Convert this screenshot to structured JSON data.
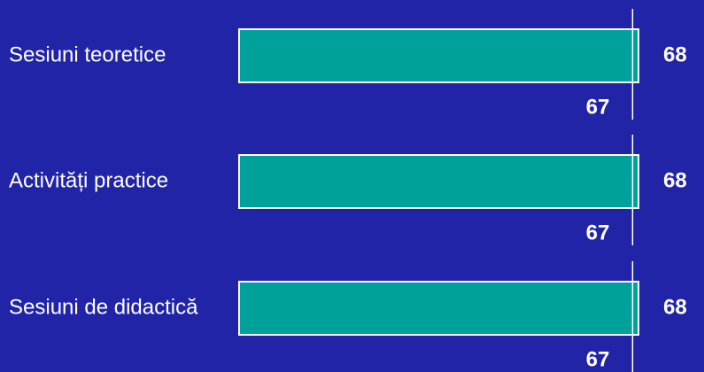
{
  "chart_data": {
    "type": "bar",
    "orientation": "horizontal",
    "categories": [
      "Sesiuni teoretice",
      "Activități practice",
      "Sesiuni de didactică"
    ],
    "values": [
      68,
      68,
      68
    ],
    "marker_values": [
      67,
      67,
      67
    ],
    "color": "#00a19a",
    "xlim": [
      0,
      68
    ]
  }
}
